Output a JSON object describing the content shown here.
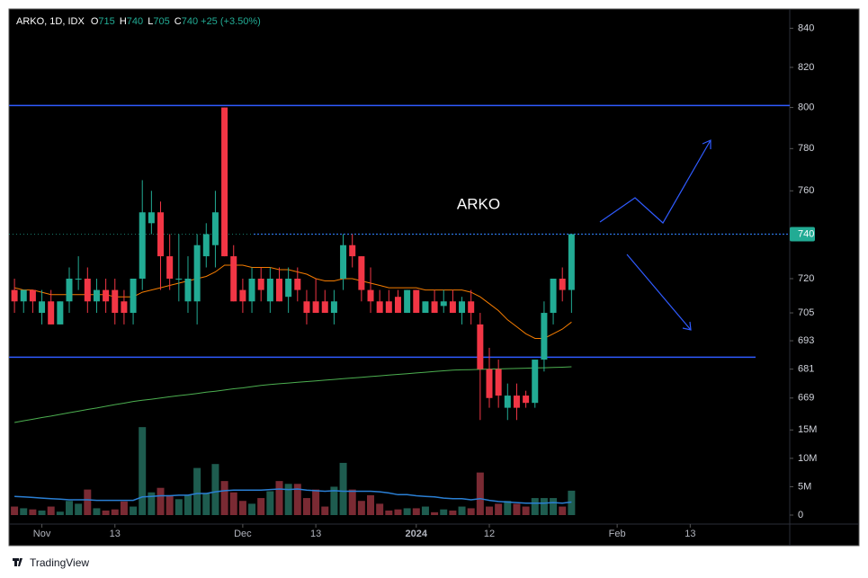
{
  "chart_data": {
    "type": "candlestick",
    "title": "ARKO, 1D, IDX",
    "ohlc_labels": [
      "O",
      "H",
      "L",
      "C"
    ],
    "change": {
      "value": 25,
      "label": "+25"
    },
    "change_pct": {
      "value": 3.5,
      "label": "(+3.50%)"
    },
    "annotation": "ARKO",
    "footer": "TradingView",
    "log_scale": true,
    "up_color": "#22ab94",
    "down_color": "#f23645",
    "volume_up_color": "#1e5c4f",
    "volume_down_color": "#7a2a33",
    "open": [
      715,
      710,
      715,
      705,
      710,
      700,
      710,
      720,
      720,
      710,
      715,
      715,
      710,
      705,
      720,
      745,
      750,
      730,
      720,
      710,
      710,
      730,
      735,
      800,
      730,
      715,
      710,
      720,
      710,
      720,
      712,
      720,
      710,
      710,
      710,
      705,
      720,
      735,
      730,
      715,
      710,
      710,
      712,
      705,
      715,
      705,
      710,
      708,
      710,
      705,
      710,
      700,
      681,
      681,
      665,
      670,
      670,
      667,
      685,
      705,
      720,
      715
    ],
    "high": [
      720,
      715,
      715,
      715,
      715,
      710,
      725,
      730,
      725,
      720,
      720,
      720,
      715,
      720,
      765,
      760,
      755,
      740,
      740,
      730,
      740,
      745,
      760,
      800,
      735,
      720,
      725,
      725,
      725,
      725,
      725,
      725,
      715,
      720,
      715,
      715,
      740,
      740,
      730,
      725,
      715,
      715,
      715,
      715,
      715,
      710,
      715,
      715,
      715,
      712,
      715,
      705,
      690,
      685,
      675,
      675,
      672,
      685,
      710,
      720,
      725,
      740
    ],
    "low": [
      705,
      705,
      705,
      700,
      700,
      700,
      705,
      715,
      705,
      705,
      705,
      700,
      700,
      700,
      715,
      740,
      715,
      715,
      710,
      705,
      700,
      725,
      725,
      730,
      710,
      705,
      705,
      710,
      705,
      710,
      705,
      710,
      700,
      705,
      705,
      700,
      715,
      725,
      710,
      705,
      705,
      705,
      705,
      705,
      705,
      705,
      705,
      705,
      705,
      700,
      700,
      660,
      665,
      665,
      660,
      660,
      665,
      665,
      680,
      700,
      710,
      705
    ],
    "close": [
      710,
      715,
      710,
      710,
      700,
      710,
      720,
      720,
      710,
      715,
      710,
      705,
      705,
      720,
      750,
      750,
      730,
      720,
      720,
      720,
      735,
      740,
      750,
      730,
      710,
      710,
      720,
      715,
      720,
      710,
      720,
      715,
      705,
      705,
      705,
      710,
      735,
      730,
      715,
      710,
      705,
      705,
      705,
      715,
      705,
      710,
      705,
      710,
      705,
      710,
      705,
      681,
      669,
      670,
      670,
      665,
      667,
      685,
      705,
      720,
      715,
      740
    ],
    "volume": [
      1500000,
      1200000,
      1000000,
      800000,
      1500000,
      600000,
      2500000,
      2000000,
      4500000,
      1200000,
      800000,
      1000000,
      2400000,
      1500000,
      15500000,
      4000000,
      4800000,
      3500000,
      2800000,
      3500000,
      8300000,
      3800000,
      9000000,
      6000000,
      4000000,
      2500000,
      2000000,
      3000000,
      4200000,
      6000000,
      5500000,
      5500000,
      3000000,
      4500000,
      1500000,
      5000000,
      9200000,
      4500000,
      2500000,
      3500000,
      2000000,
      800000,
      1000000,
      1200000,
      1200000,
      1500000,
      500000,
      1000000,
      800000,
      1500000,
      1200000,
      7500000,
      1500000,
      2000000,
      2500000,
      2000000,
      1500000,
      3000000,
      3000000,
      3000000,
      1500000,
      4300000
    ],
    "ma_fast": {
      "color": "#f57c00",
      "values": [
        716,
        715,
        715,
        714,
        713,
        713,
        713,
        713,
        713,
        713,
        713,
        712,
        712,
        712,
        714,
        715,
        716,
        717,
        718,
        719,
        720,
        721,
        723,
        726,
        726,
        726,
        725,
        725,
        725,
        724,
        724,
        723,
        722,
        720,
        719,
        719,
        720,
        720,
        719,
        718,
        717,
        716,
        716,
        716,
        716,
        715,
        715,
        715,
        715,
        715,
        714,
        712,
        709,
        706,
        702,
        699,
        696,
        694,
        694,
        696,
        698,
        701
      ]
    },
    "ma_slow": {
      "color": "#4caf50",
      "values": [
        659.0,
        659.7,
        660.3,
        661.0,
        661.6,
        662.3,
        663.0,
        663.6,
        664.3,
        664.9,
        665.6,
        666.3,
        666.9,
        667.6,
        668.1,
        668.5,
        669.0,
        669.5,
        670.0,
        670.4,
        670.9,
        671.4,
        671.8,
        672.3,
        672.8,
        673.2,
        673.7,
        674.2,
        674.6,
        674.9,
        675.2,
        675.5,
        675.8,
        676.1,
        676.4,
        676.7,
        677.0,
        677.3,
        677.6,
        677.9,
        678.2,
        678.5,
        678.8,
        679.1,
        679.4,
        679.7,
        680.0,
        680.3,
        680.6,
        680.7,
        680.8,
        680.9,
        681.0,
        681.1,
        681.2,
        681.3,
        681.4,
        681.5,
        681.6,
        681.7,
        681.8,
        682.0
      ]
    },
    "volume_ma": {
      "color": "#2a7fd4",
      "values": [
        3300000,
        3200000,
        3100000,
        3000000,
        2900000,
        2800000,
        2700000,
        2700000,
        2700000,
        2600000,
        2600000,
        2600000,
        2600000,
        2600000,
        3200000,
        3300000,
        3400000,
        3400000,
        3500000,
        3500000,
        3800000,
        3800000,
        4100000,
        4300000,
        4400000,
        4400000,
        4400000,
        4400000,
        4500000,
        4600000,
        4500000,
        4600000,
        4400000,
        4300000,
        4200000,
        4300000,
        4200000,
        4200000,
        4200000,
        4200000,
        4100000,
        3900000,
        3600000,
        3600000,
        3400000,
        3300000,
        3200000,
        3000000,
        2900000,
        2900000,
        2700000,
        2900000,
        2600000,
        2400000,
        2300000,
        2200000,
        2100000,
        2100000,
        2100000,
        2200000,
        2100000,
        2300000
      ]
    },
    "hlines": [
      801,
      740,
      686
    ],
    "hline_color": "#2f5bff",
    "ylim": [
      659,
      850
    ],
    "yticks": [
      840,
      820,
      800,
      780,
      760,
      740,
      720,
      705,
      693,
      681,
      669
    ],
    "volume_ylim": [
      0,
      16000000
    ],
    "volume_ticks": [
      {
        "value": 15000000,
        "label": "15M"
      },
      {
        "value": 10000000,
        "label": "10M"
      },
      {
        "value": 5000000,
        "label": "5M"
      },
      0
    ],
    "xlim": [
      -0.6,
      84.9
    ],
    "xticks": [
      {
        "value": 3,
        "label": "Nov"
      },
      {
        "value": 11,
        "label": "13"
      },
      {
        "value": 25,
        "label": "Dec"
      },
      {
        "value": 33,
        "label": "13"
      },
      {
        "value": 44,
        "label": "2024"
      },
      {
        "value": 52,
        "label": "12"
      },
      {
        "value": 66,
        "label": "Feb"
      },
      {
        "value": 74,
        "label": "13"
      }
    ]
  }
}
